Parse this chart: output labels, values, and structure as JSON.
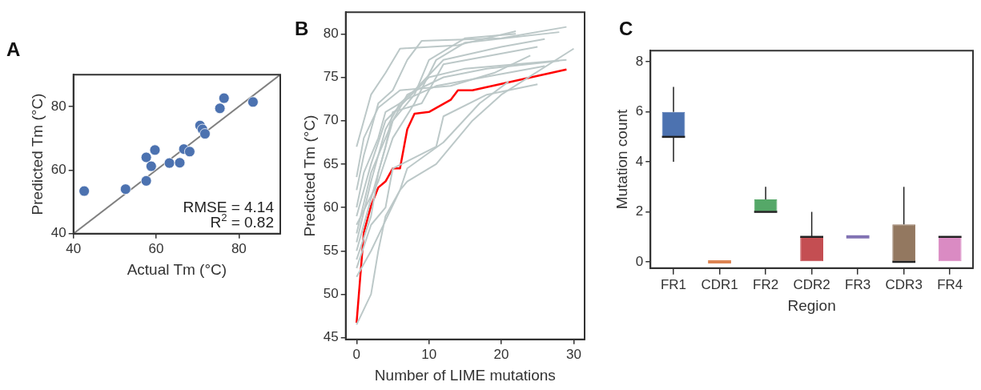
{
  "chart_data": [
    {
      "type": "scatter",
      "title": "A",
      "xlabel": "Actual Tm (°C)",
      "ylabel": "Predicted Tm (°C)",
      "xlim": [
        40,
        90
      ],
      "ylim": [
        40,
        90
      ],
      "xticks": [
        40,
        60,
        80
      ],
      "yticks": [
        40,
        60,
        80
      ],
      "marker": "circle",
      "grid": false,
      "series": [
        {
          "color": "#4c72b0",
          "x": [
            42.6,
            52.6,
            57.6,
            57.6,
            58.8,
            59.7,
            63.2,
            65.7,
            66.7,
            68.1,
            70.6,
            71.2,
            71.8,
            75.4,
            76.4,
            83.4
          ],
          "values": [
            53.4,
            54.0,
            56.6,
            64.0,
            61.2,
            66.3,
            62.2,
            62.3,
            66.6,
            65.8,
            74.0,
            72.8,
            71.4,
            79.4,
            82.6,
            81.4
          ]
        },
        {
          "type": "line",
          "color": "#808080",
          "marker": "none",
          "x": [
            40,
            90
          ],
          "values": [
            40,
            90
          ]
        }
      ],
      "annotations": [
        "RMSE = 4.14",
        "R$^{2}$ = 0.82"
      ]
    },
    {
      "type": "line",
      "title": "B",
      "xlabel": "Number of LIME mutations",
      "ylabel": "Predicted Tm (°C)",
      "xlim": [
        -1.5,
        31.5
      ],
      "ylim": [
        44.8,
        82.5
      ],
      "xticks": [
        0,
        10,
        20,
        30
      ],
      "yticks": [
        45,
        50,
        55,
        60,
        65,
        70,
        75,
        80
      ],
      "grid": false,
      "marker": "none",
      "series": [
        {
          "color": "#bcc8c8",
          "x": [
            0,
            1,
            2,
            4,
            6,
            14,
            22
          ],
          "values": [
            67,
            70,
            73,
            75.5,
            78.3,
            78.7,
            80.3
          ]
        },
        {
          "color": "#bcc8c8",
          "x": [
            0,
            1,
            3,
            5,
            7,
            9,
            20,
            29
          ],
          "values": [
            62,
            66,
            72,
            73.5,
            77,
            79.2,
            79.5,
            80.8
          ]
        },
        {
          "color": "#bcc8c8",
          "x": [
            0,
            2,
            4,
            6,
            8,
            12,
            20,
            26
          ],
          "values": [
            56,
            63,
            69,
            72,
            73.5,
            77,
            78.5,
            79.4
          ]
        },
        {
          "color": "#bcc8c8",
          "x": [
            0,
            2,
            4,
            5,
            9,
            12,
            25
          ],
          "values": [
            55,
            61,
            67,
            71,
            72,
            76.5,
            78.5
          ]
        },
        {
          "color": "#bcc8c8",
          "x": [
            0,
            2,
            3,
            5,
            7,
            12,
            18,
            28
          ],
          "values": [
            54,
            59,
            64,
            70,
            73,
            75,
            76,
            76.9
          ]
        },
        {
          "color": "#bcc8c8",
          "x": [
            0,
            1,
            3,
            4,
            7,
            11,
            26
          ],
          "values": [
            60,
            64,
            68,
            71,
            72.5,
            74,
            76.3
          ]
        },
        {
          "color": "#bcc8c8",
          "x": [
            0,
            2,
            4,
            5,
            11,
            12,
            18,
            25
          ],
          "values": [
            53,
            58,
            60,
            64.5,
            67,
            70.5,
            73,
            74.2
          ]
        },
        {
          "color": "#bcc8c8",
          "x": [
            0,
            3,
            5,
            8,
            11,
            15,
            28
          ],
          "values": [
            58,
            63,
            68,
            72,
            77,
            79,
            80.2
          ]
        },
        {
          "color": "#bcc8c8",
          "x": [
            0,
            2,
            4,
            6,
            7,
            11,
            16,
            20,
            30
          ],
          "values": [
            52,
            55,
            58.5,
            62,
            63,
            65,
            70,
            73,
            78.3
          ]
        },
        {
          "color": "#bcc8c8",
          "x": [
            0,
            2,
            4,
            7,
            10,
            15,
            29
          ],
          "values": [
            59,
            65,
            70,
            72.5,
            75,
            76,
            77
          ]
        },
        {
          "color": "#bcc8c8",
          "x": [
            0,
            2,
            3,
            4,
            6,
            7,
            12,
            17,
            21
          ],
          "values": [
            46.5,
            50,
            55,
            59,
            62,
            64.5,
            67.5,
            72,
            74.5
          ]
        },
        {
          "color": "#bcc8c8",
          "x": [
            0,
            1,
            3,
            6,
            13,
            19,
            24
          ],
          "values": [
            63.5,
            68,
            71.5,
            73.5,
            74,
            75.5,
            77.5
          ]
        },
        {
          "color": "#bcc8c8",
          "x": [
            0,
            2,
            5,
            8,
            10,
            15,
            22
          ],
          "values": [
            57,
            64,
            70,
            73,
            77,
            79.5,
            80
          ]
        },
        {
          "color": "#ff0000",
          "x": [
            0,
            1,
            2,
            3,
            4,
            5,
            6,
            7,
            8,
            10,
            13,
            14,
            16,
            29
          ],
          "values": [
            46.7,
            57.1,
            60.2,
            62.3,
            63.0,
            64.5,
            64.5,
            69.0,
            70.8,
            71.0,
            72.4,
            73.5,
            73.5,
            75.9
          ]
        }
      ]
    },
    {
      "type": "box",
      "title": "C",
      "xlabel": "Region",
      "ylabel": "Mutation count",
      "categories": [
        "FR1",
        "CDR1",
        "FR2",
        "CDR2",
        "FR3",
        "CDR3",
        "FR4"
      ],
      "ylim": [
        -0.25,
        8.45
      ],
      "yticks": [
        0,
        2,
        4,
        6,
        8
      ],
      "grid": false,
      "colors": [
        "#4c72b0",
        "#dd8452",
        "#55a868",
        "#c44e52",
        "#8172b3",
        "#937860",
        "#da8bc3"
      ],
      "boxes": [
        {
          "low": 4,
          "q1": 5,
          "median": 5,
          "q3": 6,
          "high": 7
        },
        {
          "low": 0,
          "q1": 0,
          "median": 0,
          "q3": 0,
          "high": 0
        },
        {
          "low": 2,
          "q1": 2,
          "median": 2,
          "q3": 2.5,
          "high": 3
        },
        {
          "low": 0,
          "q1": 0,
          "median": 1,
          "q3": 1,
          "high": 2
        },
        {
          "low": 1,
          "q1": 1,
          "median": 1,
          "q3": 1,
          "high": 1
        },
        {
          "low": 0,
          "q1": 0,
          "median": 0,
          "q3": 1.5,
          "high": 3
        },
        {
          "low": 0,
          "q1": 0,
          "median": 1,
          "q3": 1,
          "high": 1
        }
      ]
    }
  ]
}
